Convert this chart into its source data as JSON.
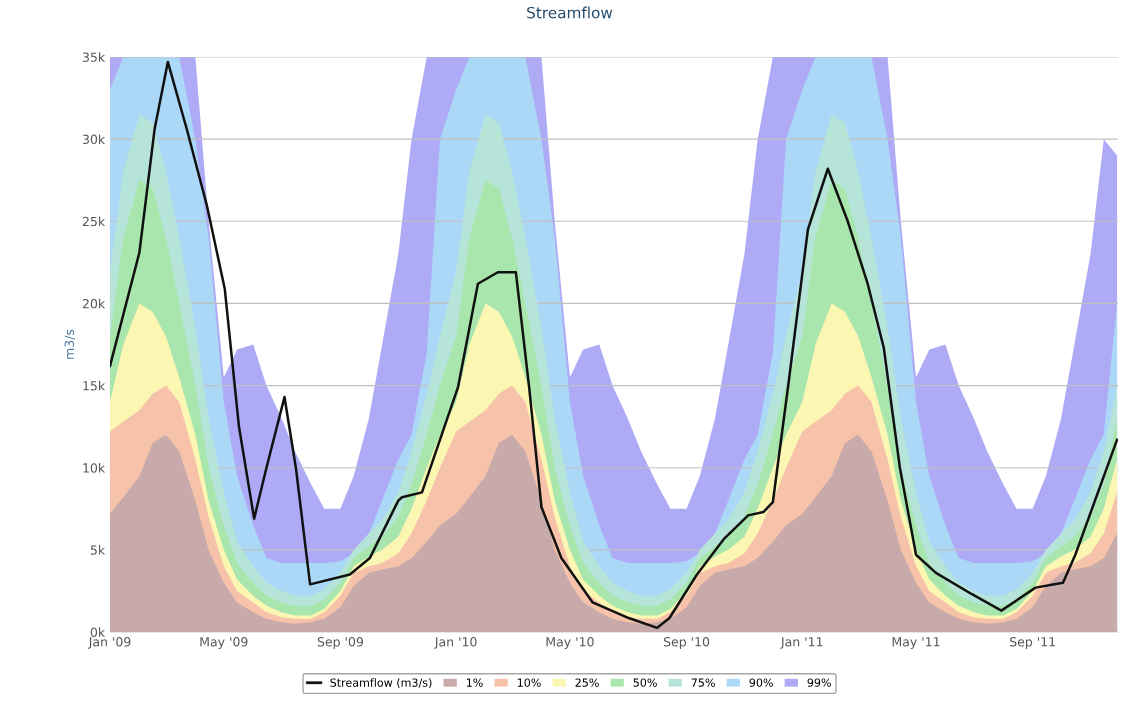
{
  "chart_data": {
    "type": "area",
    "title": "Streamflow",
    "ylabel": "m3/s",
    "x": [
      "2009-01-01",
      "2009-01-15",
      "2009-02-01",
      "2009-02-15",
      "2009-03-01",
      "2009-03-15",
      "2009-04-01",
      "2009-04-15",
      "2009-05-01",
      "2009-05-15",
      "2009-06-01",
      "2009-06-15",
      "2009-07-01",
      "2009-07-15",
      "2009-08-01",
      "2009-08-15",
      "2009-09-01",
      "2009-09-15",
      "2009-10-01",
      "2009-10-15",
      "2009-11-01",
      "2009-11-15",
      "2009-12-01",
      "2009-12-15",
      "2010-01-01",
      "2010-01-15",
      "2010-02-01",
      "2010-02-15",
      "2010-03-01",
      "2010-03-15",
      "2010-04-01",
      "2010-04-15",
      "2010-05-01",
      "2010-05-15",
      "2010-06-01",
      "2010-06-15",
      "2010-07-01",
      "2010-07-15",
      "2010-08-01",
      "2010-08-15",
      "2010-09-01",
      "2010-09-15",
      "2010-10-01",
      "2010-10-15",
      "2010-11-01",
      "2010-11-15",
      "2010-12-01",
      "2010-12-15",
      "2011-01-01",
      "2011-01-15",
      "2011-02-01",
      "2011-02-15",
      "2011-03-01",
      "2011-03-15",
      "2011-04-01",
      "2011-04-15",
      "2011-05-01",
      "2011-05-15",
      "2011-06-01",
      "2011-06-15",
      "2011-07-01",
      "2011-07-15",
      "2011-08-01",
      "2011-08-15",
      "2011-09-01",
      "2011-09-15",
      "2011-10-01",
      "2011-10-15",
      "2011-11-01",
      "2011-11-15",
      "2011-11-29"
    ],
    "series": [
      {
        "name": "Streamflow (m3/s)",
        "type": "line",
        "color": "#111111",
        "x": [
          "2009-01-01",
          "2009-02-01",
          "2009-02-17",
          "2009-03-03",
          "2009-03-23",
          "2009-04-13",
          "2009-05-02",
          "2009-05-17",
          "2009-06-02",
          "2009-06-15",
          "2009-07-04",
          "2009-07-16",
          "2009-07-31",
          "2009-09-11",
          "2009-10-02",
          "2009-11-01",
          "2009-11-05",
          "2009-11-26",
          "2010-01-03",
          "2010-01-24",
          "2010-02-14",
          "2010-03-05",
          "2010-03-19",
          "2010-04-01",
          "2010-04-22",
          "2010-05-25",
          "2010-07-02",
          "2010-08-01",
          "2010-08-14",
          "2010-09-12",
          "2010-10-11",
          "2010-11-05",
          "2010-11-21",
          "2010-12-01",
          "2010-12-17",
          "2011-01-07",
          "2011-01-28",
          "2011-02-18",
          "2011-03-11",
          "2011-03-28",
          "2011-04-14",
          "2011-05-01",
          "2011-05-22",
          "2011-06-29",
          "2011-07-30",
          "2011-09-04",
          "2011-10-03",
          "2011-10-16",
          "2011-11-29"
        ],
        "values": [
          16200,
          23100,
          30600,
          34700,
          30600,
          26000,
          20900,
          12500,
          6900,
          10000,
          14300,
          10000,
          2900,
          3500,
          4500,
          8000,
          8200,
          8500,
          14900,
          21200,
          21900,
          21900,
          14900,
          7600,
          4500,
          1800,
          850,
          250,
          850,
          3500,
          5700,
          7100,
          7300,
          7900,
          14900,
          24500,
          28200,
          25000,
          21200,
          17300,
          10000,
          4700,
          3600,
          2300,
          1300,
          2700,
          3000,
          4700,
          11700
        ]
      },
      {
        "name": "1%",
        "color": "#c9aaaa",
        "values": [
          7200,
          8200,
          9500,
          11500,
          12000,
          11000,
          8000,
          5000,
          3000,
          1800,
          1200,
          800,
          600,
          500,
          600,
          800,
          1500,
          2800,
          3600,
          3800,
          4000,
          4500,
          5500,
          6500,
          7200,
          8200,
          9500,
          11500,
          12000,
          11000,
          8000,
          5000,
          3000,
          1800,
          1200,
          800,
          600,
          500,
          600,
          800,
          1500,
          2800,
          3600,
          3800,
          4000,
          4500,
          5500,
          6500,
          7200,
          8200,
          9500,
          11500,
          12000,
          11000,
          8000,
          5000,
          3000,
          1800,
          1200,
          800,
          600,
          500,
          600,
          800,
          1500,
          2800,
          3600,
          3800,
          4000,
          4500,
          6000
        ]
      },
      {
        "name": "10%",
        "color": "#f6c3aa",
        "values": [
          12200,
          12800,
          13500,
          14500,
          15000,
          14000,
          10500,
          7000,
          4000,
          2500,
          1800,
          1200,
          900,
          800,
          800,
          1200,
          2200,
          3600,
          4000,
          4200,
          4800,
          6000,
          8000,
          10000,
          12200,
          12800,
          13500,
          14500,
          15000,
          14000,
          10500,
          7000,
          4000,
          2500,
          1800,
          1200,
          900,
          800,
          800,
          1200,
          2200,
          3600,
          4000,
          4200,
          4800,
          6000,
          8000,
          10000,
          12200,
          12800,
          13500,
          14500,
          15000,
          14000,
          10500,
          7000,
          4000,
          2500,
          1800,
          1200,
          900,
          800,
          800,
          1200,
          2200,
          3600,
          4000,
          4200,
          4800,
          6000,
          8500
        ]
      },
      {
        "name": "25%",
        "color": "#fbf6b2",
        "values": [
          14000,
          17500,
          20000,
          19500,
          18000,
          15500,
          12000,
          8000,
          5000,
          3200,
          2200,
          1600,
          1200,
          1000,
          1000,
          1400,
          2500,
          4000,
          4600,
          5000,
          5800,
          7500,
          10000,
          12000,
          14000,
          17500,
          20000,
          19500,
          18000,
          15500,
          12000,
          8000,
          5000,
          3200,
          2200,
          1600,
          1200,
          1000,
          1000,
          1400,
          2500,
          4000,
          4600,
          5000,
          5800,
          7500,
          10000,
          12000,
          14000,
          17500,
          20000,
          19500,
          18000,
          15500,
          12000,
          8000,
          5000,
          3200,
          2200,
          1600,
          1200,
          1000,
          1000,
          1400,
          2500,
          4000,
          4600,
          5000,
          5800,
          7500,
          10500
        ]
      },
      {
        "name": "50%",
        "color": "#a9e6ad",
        "values": [
          18000,
          24000,
          27500,
          27000,
          24000,
          20000,
          15000,
          10000,
          6500,
          4200,
          3000,
          2200,
          1800,
          1600,
          1600,
          2000,
          3000,
          4500,
          5200,
          5800,
          7000,
          9000,
          12000,
          15000,
          18000,
          24000,
          27500,
          27000,
          24000,
          20000,
          15000,
          10000,
          6500,
          4200,
          3000,
          2200,
          1800,
          1600,
          1600,
          2000,
          3000,
          4500,
          5200,
          5800,
          7000,
          9000,
          12000,
          15000,
          18000,
          24000,
          27500,
          27000,
          24000,
          20000,
          15000,
          10000,
          6500,
          4200,
          3000,
          2200,
          1800,
          1600,
          1600,
          2000,
          3000,
          4500,
          5200,
          5800,
          7000,
          9000,
          13000
        ]
      },
      {
        "name": "75%",
        "color": "#b6e4d8",
        "values": [
          22000,
          28000,
          31500,
          31000,
          28000,
          24000,
          18500,
          13000,
          8500,
          5500,
          4000,
          3000,
          2500,
          2200,
          2200,
          2600,
          3600,
          5000,
          6000,
          6800,
          8500,
          11000,
          14500,
          18000,
          22000,
          28000,
          31500,
          31000,
          28000,
          24000,
          18500,
          13000,
          8500,
          5500,
          4000,
          3000,
          2500,
          2200,
          2200,
          2600,
          3600,
          5000,
          6000,
          6800,
          8500,
          11000,
          14500,
          18000,
          22000,
          28000,
          31500,
          31000,
          28000,
          24000,
          18500,
          13000,
          8500,
          5500,
          4000,
          3000,
          2500,
          2200,
          2200,
          2600,
          3600,
          5000,
          6000,
          6800,
          8500,
          11000,
          15000
        ]
      },
      {
        "name": "90%",
        "color": "#abd8f7",
        "values": [
          33000,
          35000,
          35000,
          35000,
          35000,
          35000,
          30000,
          24000,
          14000,
          9500,
          6500,
          4500,
          4200,
          4200,
          4200,
          4200,
          4300,
          4800,
          6000,
          8000,
          10500,
          12000,
          17000,
          30000,
          33000,
          35000,
          35000,
          35000,
          35000,
          35000,
          30000,
          24000,
          14000,
          9500,
          6500,
          4500,
          4200,
          4200,
          4200,
          4200,
          4300,
          4800,
          6000,
          8000,
          10500,
          12000,
          17000,
          30000,
          33000,
          35000,
          35000,
          35000,
          35000,
          35000,
          30000,
          24000,
          14000,
          9500,
          6500,
          4500,
          4200,
          4200,
          4200,
          4200,
          4300,
          4800,
          6000,
          8000,
          10500,
          12000,
          20000
        ]
      },
      {
        "name": "99%",
        "color": "#aeaaf6",
        "values": [
          35000,
          35000,
          null,
          null,
          null,
          35000,
          35000,
          25000,
          15500,
          17200,
          17500,
          15000,
          13000,
          11000,
          9000,
          7500,
          7500,
          9500,
          13000,
          17500,
          23000,
          30000,
          35000,
          35000,
          35000,
          35000,
          null,
          null,
          null,
          35000,
          35000,
          25000,
          15500,
          17200,
          17500,
          15000,
          13000,
          11000,
          9000,
          7500,
          7500,
          9500,
          13000,
          17500,
          23000,
          30000,
          35000,
          35000,
          35000,
          35000,
          null,
          null,
          null,
          35000,
          35000,
          25000,
          15500,
          17200,
          17500,
          15000,
          13000,
          11000,
          9000,
          7500,
          7500,
          9500,
          13000,
          17500,
          23000,
          30000,
          29000
        ]
      }
    ],
    "xlim": [
      "2009-01-01",
      "2011-11-30"
    ],
    "xticks": [
      {
        "value": "2009-01-01",
        "label": "Jan '09"
      },
      {
        "value": "2009-05-01",
        "label": "May '09"
      },
      {
        "value": "2009-09-01",
        "label": "Sep '09"
      },
      {
        "value": "2010-01-01",
        "label": "Jan '10"
      },
      {
        "value": "2010-05-01",
        "label": "May '10"
      },
      {
        "value": "2010-09-01",
        "label": "Sep '10"
      },
      {
        "value": "2011-01-01",
        "label": "Jan '11"
      },
      {
        "value": "2011-05-01",
        "label": "May '11"
      },
      {
        "value": "2011-09-01",
        "label": "Sep '11"
      }
    ],
    "ylim": [
      0,
      35000
    ],
    "yticks": [
      {
        "value": 0,
        "label": "0k"
      },
      {
        "value": 5000,
        "label": "5k"
      },
      {
        "value": 10000,
        "label": "10k"
      },
      {
        "value": 15000,
        "label": "15k"
      },
      {
        "value": 20000,
        "label": "20k"
      },
      {
        "value": 25000,
        "label": "25k"
      },
      {
        "value": 30000,
        "label": "30k"
      },
      {
        "value": 35000,
        "label": "35k"
      }
    ],
    "grid": "y",
    "legend": "bottom",
    "marker": "none",
    "line_style": "solid"
  }
}
